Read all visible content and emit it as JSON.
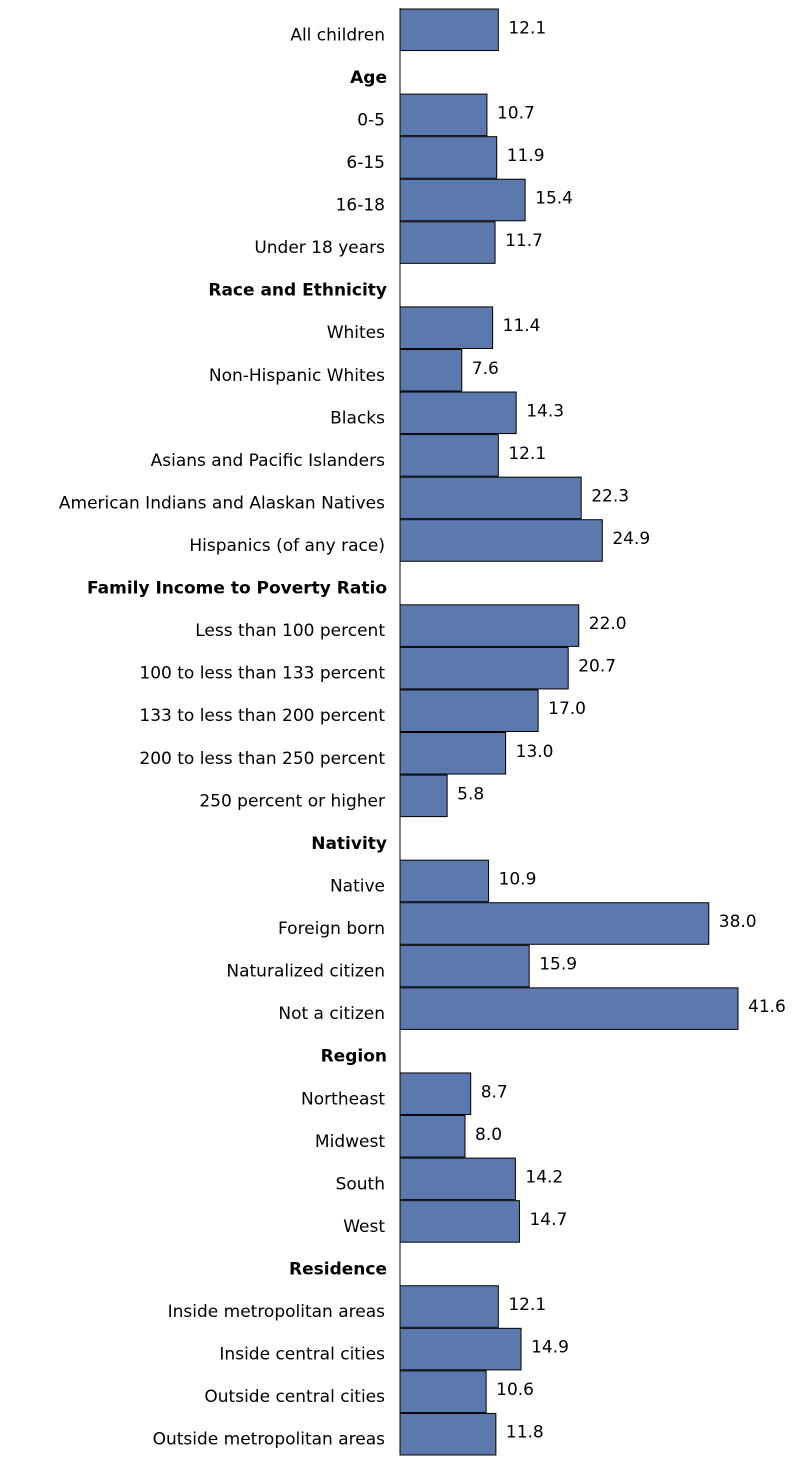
{
  "chart_data": {
    "type": "bar",
    "orientation": "horizontal",
    "color": "#5b79ad",
    "xlim": [
      0,
      48
    ],
    "categories": [
      "All children",
      "Age",
      "0-5",
      "6-15",
      "16-18",
      "Under 18 years",
      "Race and Ethnicity",
      "Whites",
      "Non-Hispanic Whites",
      "Blacks",
      "Asians and Pacific Islanders",
      "American Indians and Alaskan Natives",
      "Hispanics (of any race)",
      "Family Income to Poverty Ratio",
      "Less than 100 percent",
      "100 to less than 133 percent",
      "133 to less than 200 percent",
      "200 to less than 250 percent",
      "250 percent or higher",
      "Nativity",
      "Native",
      "Foreign born",
      "Naturalized citizen",
      "Not a citizen",
      "Region",
      "Northeast",
      "Midwest",
      "South",
      "West",
      "Residence",
      "Inside metropolitan areas",
      "Inside central cities",
      "Outside central cities",
      "Outside metropolitan areas"
    ],
    "values": [
      12.1,
      null,
      10.7,
      11.9,
      15.4,
      11.7,
      null,
      11.4,
      7.6,
      14.3,
      12.1,
      22.3,
      24.9,
      null,
      22.0,
      20.7,
      17.0,
      13.0,
      5.8,
      null,
      10.9,
      38.0,
      15.9,
      41.6,
      null,
      8.7,
      8.0,
      14.2,
      14.7,
      null,
      12.1,
      14.9,
      10.6,
      11.8
    ],
    "value_labels": [
      "12.1",
      null,
      "10.7",
      "11.9",
      "15.4",
      "11.7",
      null,
      "11.4",
      "7.6",
      "14.3",
      "12.1",
      "22.3",
      "24.9",
      null,
      "22.0",
      "20.7",
      "17.0",
      "13.0",
      "5.8",
      null,
      "10.9",
      "38.0",
      "15.9",
      "41.6",
      null,
      "8.7",
      "8.0",
      "14.2",
      "14.7",
      null,
      "12.1",
      "14.9",
      "10.6",
      "11.8"
    ]
  }
}
